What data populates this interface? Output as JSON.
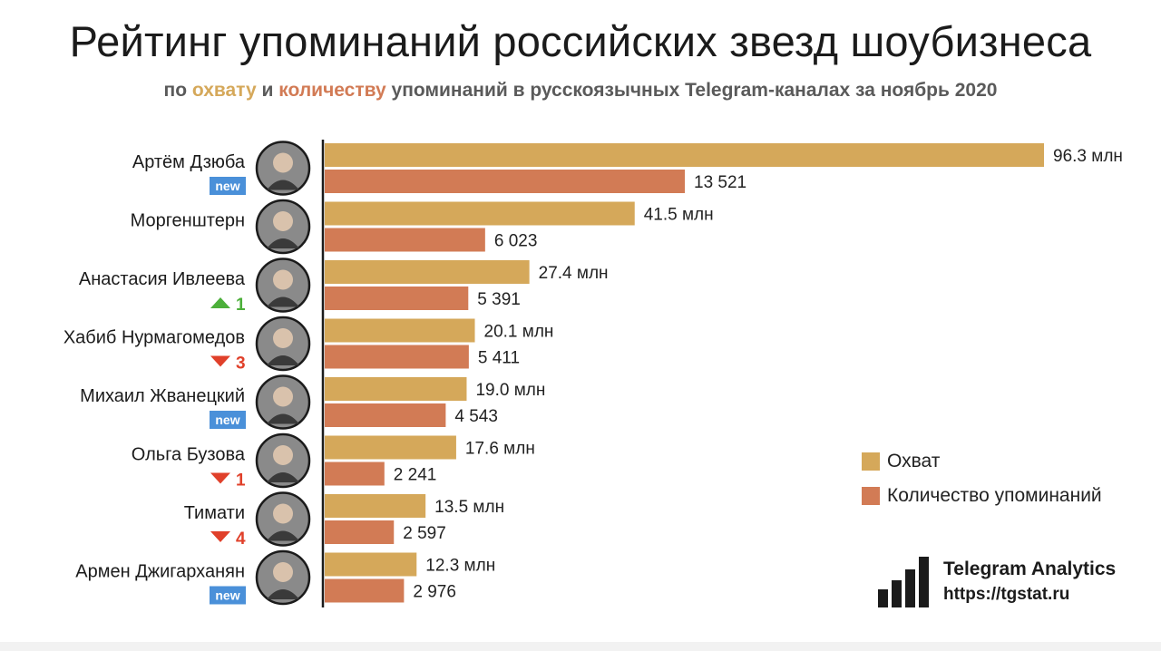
{
  "header": {
    "title": "Рейтинг упоминаний российских звезд шоубизнеса",
    "subtitle_parts": [
      "по ",
      "охвату",
      " и ",
      "количеству",
      " упоминаний в русскоязычных Telegram-каналах за ноябрь 2020"
    ]
  },
  "colors": {
    "reach": "#d5a85a",
    "count": "#d27b55",
    "new_badge": "#4a90d9",
    "up": "#4caf3a",
    "down": "#e0402a"
  },
  "chart_data": {
    "type": "bar",
    "orientation": "horizontal",
    "grid": false,
    "legend_position": "right",
    "categories": [
      "Артём Дзюба",
      "Моргенштерн",
      "Анастасия Ивлеева",
      "Хабиб Нурмагомедов",
      "Михаил Жванецкий",
      "Ольга Бузова",
      "Тимати",
      "Армен Джигарханян"
    ],
    "series": [
      {
        "name": "Охват",
        "values": [
          96.3,
          41.5,
          27.4,
          20.1,
          19.0,
          17.6,
          13.5,
          12.3
        ],
        "labels": [
          "96.3 млн",
          "41.5 млн",
          "27.4 млн",
          "20.1 млн",
          "19.0 млн",
          "17.6 млн",
          "13.5 млн",
          "12.3 млн"
        ]
      },
      {
        "name": "Количество упоминаний",
        "values": [
          13521,
          6023,
          5391,
          5411,
          4543,
          2241,
          2597,
          2976
        ],
        "labels": [
          "13 521",
          "6 023",
          "5 391",
          "5 411",
          "4 543",
          "2 241",
          "2 597",
          "2 976"
        ]
      }
    ],
    "changes": [
      {
        "type": "new",
        "text": "new"
      },
      {
        "type": "none",
        "text": ""
      },
      {
        "type": "up",
        "text": "1"
      },
      {
        "type": "down",
        "text": "3"
      },
      {
        "type": "new",
        "text": "new"
      },
      {
        "type": "down",
        "text": "1"
      },
      {
        "type": "down",
        "text": "4"
      },
      {
        "type": "new",
        "text": "new"
      }
    ]
  },
  "brand": {
    "name": "Telegram Analytics",
    "url": "https://tgstat.ru",
    "icon": "bar-chart-logo-icon"
  }
}
